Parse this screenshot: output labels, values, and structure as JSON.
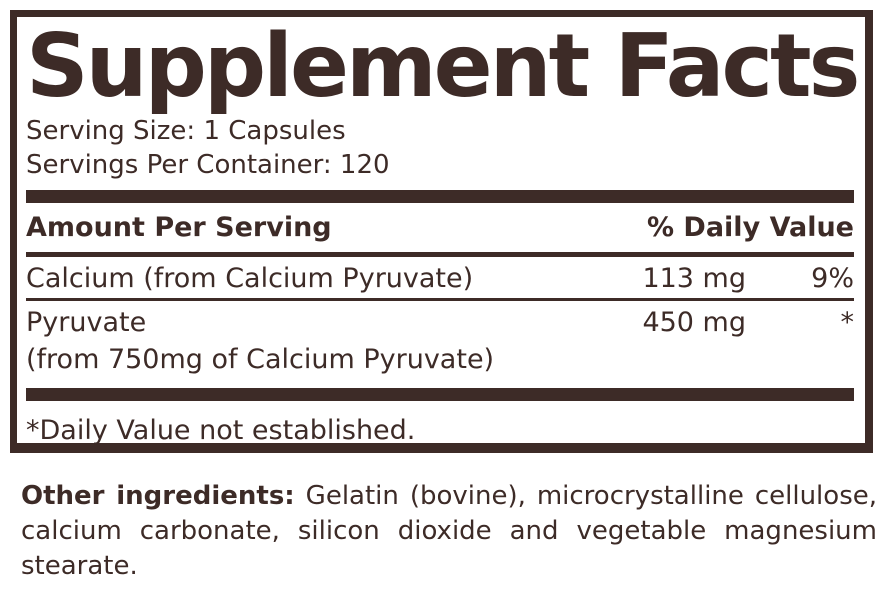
{
  "colors": {
    "ink": "#3D2B27",
    "background": "#FFFFFF"
  },
  "panel": {
    "title": "Supplement Facts",
    "serving_size": "Serving Size: 1 Capsules",
    "servings_per_container": "Servings Per Container: 120",
    "columns": {
      "amount_header": "Amount Per Serving",
      "dv_header": "% Daily Value"
    },
    "rows": [
      {
        "name": "Calcium (from Calcium Pyruvate)",
        "amount": "113 mg",
        "daily_value": "9%"
      },
      {
        "name": "Pyruvate",
        "detail": "(from 750mg of Calcium Pyruvate)",
        "amount": "450 mg",
        "daily_value": "*"
      }
    ],
    "footnote": "*Daily Value not established."
  },
  "other_ingredients": {
    "label": "Other ingredients:",
    "text": "Gelatin (bovine), microcrystalline cellulose, calcium carbonate, silicon dioxide and vegetable magnesium stearate."
  }
}
